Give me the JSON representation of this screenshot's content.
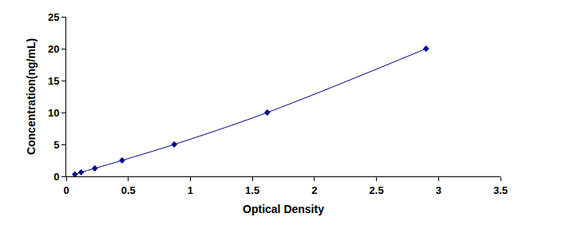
{
  "chart_data": {
    "type": "line",
    "x": [
      0.07,
      0.12,
      0.23,
      0.45,
      0.87,
      1.62,
      2.9
    ],
    "values": [
      0.31,
      0.63,
      1.25,
      2.5,
      5,
      10,
      20
    ],
    "xlabel": "Optical Density",
    "ylabel": "Concentration(ng/mL)",
    "xlim": [
      0,
      3.5
    ],
    "xticks": [
      0,
      0.5,
      1,
      1.5,
      2,
      2.5,
      3,
      3.5
    ],
    "ylim": [
      0,
      25
    ],
    "yticks": [
      0,
      5,
      10,
      15,
      20,
      25
    ],
    "grid": false,
    "color": "#00008b",
    "marker": "diamond",
    "line_style": "solid"
  }
}
